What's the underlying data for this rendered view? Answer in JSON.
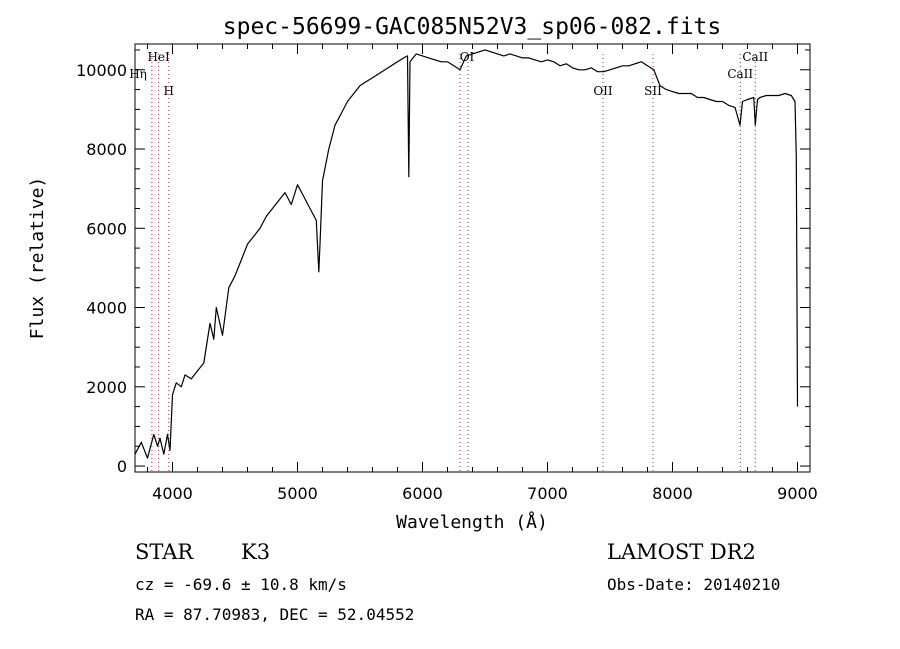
{
  "chart_data": {
    "type": "line",
    "title": "spec-56699-GAC085N52V3_sp06-082.fits",
    "xlabel": "Wavelength (Å)",
    "ylabel": "Flux (relative)",
    "xlim": [
      3700,
      9100
    ],
    "ylim": [
      -150,
      10650
    ],
    "x_ticks": [
      4000,
      5000,
      6000,
      7000,
      8000,
      9000
    ],
    "x_tick_labels": [
      "4000",
      "5000",
      "6000",
      "7000",
      "8000",
      "9000"
    ],
    "y_ticks": [
      0,
      2000,
      4000,
      6000,
      8000,
      10000
    ],
    "y_tick_labels": [
      "0",
      "2000",
      "4000",
      "6000",
      "8000",
      "10000"
    ],
    "grid": false,
    "legend": "none",
    "colors": {
      "spectrum": "#000000",
      "line_markers": "#b22222"
    },
    "series": [
      {
        "x": [
          3700,
          3750,
          3800,
          3850,
          3880,
          3900,
          3930,
          3960,
          3980,
          4000,
          4030,
          4070,
          4100,
          4150,
          4200,
          4250,
          4300,
          4330,
          4350,
          4400,
          4450,
          4500,
          4550,
          4600,
          4650,
          4700,
          4750,
          4800,
          4850,
          4900,
          4950,
          5000,
          5050,
          5100,
          5150,
          5170,
          5180,
          5200,
          5250,
          5300,
          5350,
          5400,
          5450,
          5500,
          5550,
          5600,
          5650,
          5700,
          5750,
          5800,
          5850,
          5880,
          5890,
          5900,
          5950,
          6000,
          6050,
          6100,
          6150,
          6200,
          6250,
          6300,
          6350,
          6400,
          6450,
          6500,
          6550,
          6600,
          6650,
          6700,
          6750,
          6800,
          6850,
          6900,
          6950,
          7000,
          7050,
          7100,
          7150,
          7200,
          7250,
          7300,
          7350,
          7400,
          7450,
          7500,
          7550,
          7600,
          7650,
          7700,
          7750,
          7800,
          7850,
          7900,
          7950,
          8000,
          8050,
          8100,
          8150,
          8200,
          8250,
          8300,
          8350,
          8400,
          8450,
          8500,
          8540,
          8560,
          8600,
          8650,
          8662,
          8680,
          8700,
          8750,
          8800,
          8850,
          8900,
          8950,
          8980,
          8990,
          9000
        ],
        "y": [
          300,
          600,
          200,
          800,
          500,
          700,
          300,
          800,
          400,
          1800,
          2100,
          2000,
          2300,
          2200,
          2400,
          2600,
          3600,
          3200,
          4000,
          3300,
          4500,
          4800,
          5200,
          5600,
          5800,
          6000,
          6300,
          6500,
          6700,
          6900,
          6600,
          7100,
          6800,
          6500,
          6200,
          4900,
          5600,
          7200,
          8000,
          8600,
          8900,
          9200,
          9400,
          9600,
          9700,
          9800,
          9900,
          10000,
          10100,
          10200,
          10300,
          10350,
          7300,
          10200,
          10400,
          10350,
          10300,
          10250,
          10200,
          10200,
          10100,
          10000,
          10350,
          10400,
          10450,
          10500,
          10450,
          10400,
          10350,
          10400,
          10350,
          10300,
          10300,
          10250,
          10200,
          10250,
          10200,
          10100,
          10150,
          10050,
          10000,
          10000,
          10050,
          9950,
          9950,
          10000,
          10050,
          10100,
          10100,
          10150,
          10200,
          10100,
          10000,
          9600,
          9500,
          9450,
          9400,
          9400,
          9400,
          9300,
          9300,
          9250,
          9200,
          9200,
          9100,
          9050,
          8600,
          9200,
          9250,
          9300,
          8600,
          9250,
          9300,
          9350,
          9350,
          9350,
          9400,
          9350,
          9200,
          7800,
          1500
        ]
      }
    ],
    "line_markers": [
      {
        "x": 3835,
        "label": "Hη"
      },
      {
        "x": 3889,
        "label": "HeI"
      },
      {
        "x": 3970,
        "label": "H"
      },
      {
        "x": 6300,
        "label": "OI"
      },
      {
        "x": 6364,
        "label": ""
      },
      {
        "x": 7444,
        "label": "OII"
      },
      {
        "x": 7844,
        "label": "SII"
      },
      {
        "x": 8542,
        "label": "CaII"
      },
      {
        "x": 8662,
        "label": "CaII"
      }
    ]
  },
  "info": {
    "object_class": "STAR",
    "subclass": "K3",
    "survey": "LAMOST DR2",
    "cz": "cz = -69.6 ± 10.8 km/s",
    "obs_date": "Obs-Date: 20140210",
    "coords": "RA =  87.70983, DEC =  52.04552"
  }
}
